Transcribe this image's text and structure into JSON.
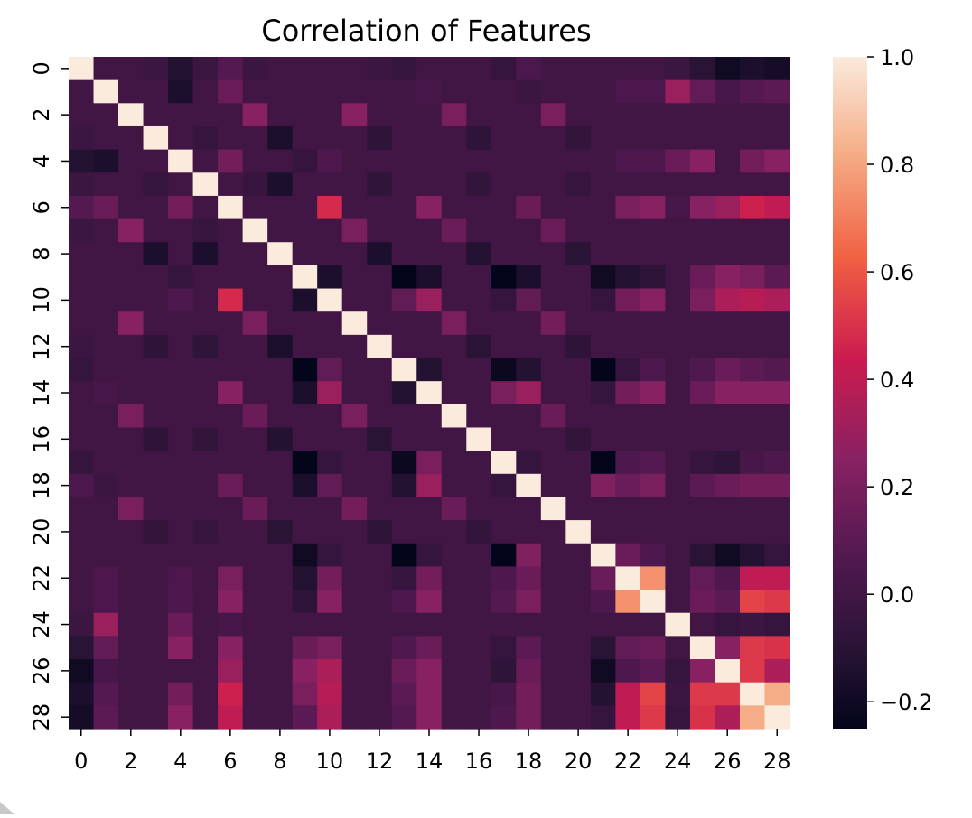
{
  "chart_data": {
    "type": "heatmap",
    "title": "Correlation of Features",
    "n": 29,
    "xlabel": "",
    "ylabel": "",
    "tick_labels": [
      "0",
      "2",
      "4",
      "6",
      "8",
      "10",
      "12",
      "14",
      "16",
      "18",
      "20",
      "22",
      "24",
      "26",
      "28"
    ],
    "tick_positions": [
      0,
      2,
      4,
      6,
      8,
      10,
      12,
      14,
      16,
      18,
      20,
      22,
      24,
      26,
      28
    ],
    "colorbar": {
      "colormap": "rocket",
      "vmin": -0.25,
      "vmax": 1.0,
      "ticks": [
        1.0,
        0.8,
        0.6,
        0.4,
        0.2,
        0.0,
        -0.2
      ],
      "tick_labels": [
        "1.0",
        "0.8",
        "0.6",
        "0.4",
        "0.2",
        "0.0",
        "−0.2"
      ]
    },
    "diagonal": 1.0,
    "base_value": 0.0,
    "pairs": [
      [
        0,
        3,
        -0.02
      ],
      [
        0,
        4,
        -0.12
      ],
      [
        0,
        5,
        -0.03
      ],
      [
        0,
        6,
        0.08
      ],
      [
        0,
        7,
        -0.02
      ],
      [
        0,
        12,
        -0.02
      ],
      [
        0,
        13,
        -0.05
      ],
      [
        0,
        17,
        -0.05
      ],
      [
        0,
        18,
        0.04
      ],
      [
        0,
        24,
        -0.03
      ],
      [
        0,
        25,
        -0.1
      ],
      [
        0,
        26,
        -0.2
      ],
      [
        0,
        27,
        -0.15
      ],
      [
        0,
        28,
        -0.18
      ],
      [
        1,
        4,
        -0.15
      ],
      [
        1,
        6,
        0.15
      ],
      [
        1,
        14,
        0.02
      ],
      [
        1,
        18,
        -0.03
      ],
      [
        1,
        22,
        0.04
      ],
      [
        1,
        23,
        0.04
      ],
      [
        1,
        24,
        0.3
      ],
      [
        1,
        25,
        0.12
      ],
      [
        1,
        26,
        0.02
      ],
      [
        1,
        27,
        0.08
      ],
      [
        1,
        28,
        0.1
      ],
      [
        2,
        7,
        0.25
      ],
      [
        2,
        11,
        0.25
      ],
      [
        2,
        15,
        0.2
      ],
      [
        2,
        19,
        0.2
      ],
      [
        3,
        5,
        -0.05
      ],
      [
        3,
        8,
        -0.15
      ],
      [
        3,
        12,
        -0.08
      ],
      [
        3,
        16,
        -0.08
      ],
      [
        3,
        20,
        -0.06
      ],
      [
        4,
        6,
        0.18
      ],
      [
        4,
        9,
        -0.05
      ],
      [
        4,
        10,
        0.05
      ],
      [
        4,
        22,
        0.04
      ],
      [
        4,
        23,
        0.05
      ],
      [
        4,
        24,
        0.15
      ],
      [
        4,
        25,
        0.25
      ],
      [
        4,
        27,
        0.18
      ],
      [
        4,
        28,
        0.25
      ],
      [
        5,
        7,
        -0.04
      ],
      [
        5,
        8,
        -0.15
      ],
      [
        5,
        12,
        -0.07
      ],
      [
        5,
        16,
        -0.06
      ],
      [
        5,
        20,
        -0.05
      ],
      [
        6,
        10,
        0.48
      ],
      [
        6,
        14,
        0.25
      ],
      [
        6,
        18,
        0.15
      ],
      [
        6,
        22,
        0.2
      ],
      [
        6,
        23,
        0.25
      ],
      [
        6,
        24,
        0.02
      ],
      [
        6,
        25,
        0.25
      ],
      [
        6,
        26,
        0.3
      ],
      [
        6,
        27,
        0.45
      ],
      [
        6,
        28,
        0.4
      ],
      [
        7,
        11,
        0.2
      ],
      [
        7,
        15,
        0.15
      ],
      [
        7,
        19,
        0.15
      ],
      [
        8,
        12,
        -0.15
      ],
      [
        8,
        16,
        -0.12
      ],
      [
        8,
        20,
        -0.1
      ],
      [
        9,
        10,
        -0.15
      ],
      [
        9,
        13,
        -0.25
      ],
      [
        9,
        14,
        -0.15
      ],
      [
        9,
        17,
        -0.25
      ],
      [
        9,
        18,
        -0.15
      ],
      [
        9,
        21,
        -0.2
      ],
      [
        9,
        22,
        -0.12
      ],
      [
        9,
        23,
        -0.08
      ],
      [
        9,
        25,
        0.15
      ],
      [
        9,
        26,
        0.25
      ],
      [
        9,
        27,
        0.2
      ],
      [
        9,
        28,
        0.1
      ],
      [
        10,
        13,
        0.12
      ],
      [
        10,
        14,
        0.3
      ],
      [
        10,
        17,
        -0.05
      ],
      [
        10,
        18,
        0.12
      ],
      [
        10,
        21,
        -0.05
      ],
      [
        10,
        22,
        0.18
      ],
      [
        10,
        23,
        0.25
      ],
      [
        10,
        25,
        0.2
      ],
      [
        10,
        26,
        0.35
      ],
      [
        10,
        27,
        0.38
      ],
      [
        10,
        28,
        0.35
      ],
      [
        11,
        15,
        0.2
      ],
      [
        11,
        19,
        0.18
      ],
      [
        12,
        16,
        -0.1
      ],
      [
        12,
        20,
        -0.08
      ],
      [
        13,
        14,
        -0.12
      ],
      [
        13,
        17,
        -0.22
      ],
      [
        13,
        18,
        -0.12
      ],
      [
        13,
        21,
        -0.25
      ],
      [
        13,
        22,
        -0.05
      ],
      [
        13,
        23,
        0.05
      ],
      [
        13,
        25,
        0.06
      ],
      [
        13,
        26,
        0.15
      ],
      [
        13,
        27,
        0.1
      ],
      [
        13,
        28,
        0.08
      ],
      [
        14,
        17,
        0.2
      ],
      [
        14,
        18,
        0.3
      ],
      [
        14,
        21,
        -0.05
      ],
      [
        14,
        22,
        0.18
      ],
      [
        14,
        23,
        0.25
      ],
      [
        14,
        25,
        0.15
      ],
      [
        14,
        26,
        0.25
      ],
      [
        14,
        27,
        0.25
      ],
      [
        14,
        28,
        0.25
      ],
      [
        15,
        19,
        0.15
      ],
      [
        16,
        20,
        -0.06
      ],
      [
        17,
        18,
        -0.05
      ],
      [
        17,
        21,
        -0.25
      ],
      [
        17,
        22,
        0.05
      ],
      [
        17,
        23,
        0.08
      ],
      [
        17,
        25,
        -0.05
      ],
      [
        17,
        26,
        -0.08
      ],
      [
        17,
        27,
        0.02
      ],
      [
        17,
        28,
        0.05
      ],
      [
        18,
        21,
        0.22
      ],
      [
        18,
        22,
        0.15
      ],
      [
        18,
        23,
        0.2
      ],
      [
        18,
        25,
        0.1
      ],
      [
        18,
        26,
        0.15
      ],
      [
        18,
        27,
        0.18
      ],
      [
        18,
        28,
        0.18
      ],
      [
        21,
        22,
        0.15
      ],
      [
        21,
        23,
        0.05
      ],
      [
        21,
        25,
        -0.1
      ],
      [
        21,
        26,
        -0.2
      ],
      [
        21,
        27,
        -0.12
      ],
      [
        21,
        28,
        -0.05
      ],
      [
        22,
        23,
        0.75
      ],
      [
        22,
        25,
        0.12
      ],
      [
        22,
        26,
        0.05
      ],
      [
        22,
        27,
        0.4
      ],
      [
        22,
        28,
        0.4
      ],
      [
        23,
        25,
        0.15
      ],
      [
        23,
        26,
        0.1
      ],
      [
        23,
        27,
        0.55
      ],
      [
        23,
        28,
        0.52
      ],
      [
        24,
        26,
        -0.05
      ],
      [
        24,
        27,
        -0.02
      ],
      [
        24,
        28,
        -0.05
      ],
      [
        25,
        26,
        0.25
      ],
      [
        25,
        27,
        0.52
      ],
      [
        25,
        28,
        0.5
      ],
      [
        26,
        27,
        0.52
      ],
      [
        26,
        28,
        0.35
      ],
      [
        27,
        28,
        0.82
      ]
    ]
  }
}
